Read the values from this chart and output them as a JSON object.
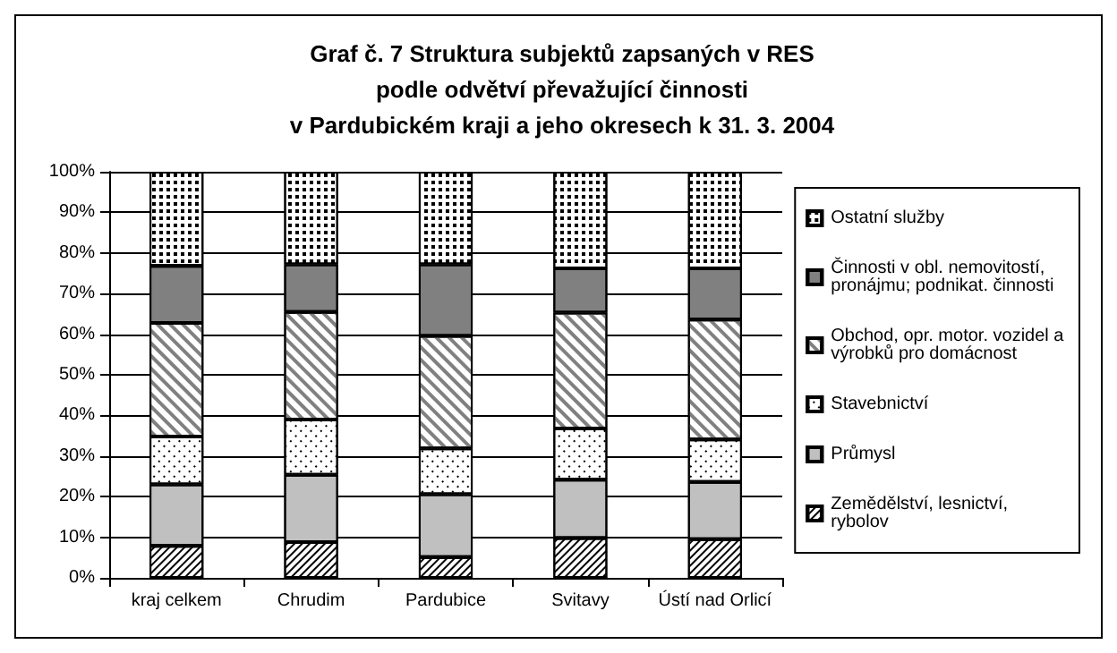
{
  "chart_data": {
    "type": "bar",
    "title": "Graf č. 7 Struktura subjektů zapsaných v RES\npodle odvětví převažující činnosti\nv Pardubickém kraji a jeho okresech k 31. 3. 2004",
    "categories": [
      "kraj celkem",
      "Chrudim",
      "Pardubice",
      "Svitavy",
      "Ústí nad Orlicí"
    ],
    "stacked": true,
    "ylim": [
      0,
      100
    ],
    "yticks": [
      {
        "value": 0,
        "label": "0%"
      },
      {
        "value": 10,
        "label": "10%"
      },
      {
        "value": 20,
        "label": "20%"
      },
      {
        "value": 30,
        "label": "30%"
      },
      {
        "value": 40,
        "label": "40%"
      },
      {
        "value": 50,
        "label": "50%"
      },
      {
        "value": 60,
        "label": "60%"
      },
      {
        "value": 70,
        "label": "70%"
      },
      {
        "value": 80,
        "label": "80%"
      },
      {
        "value": 90,
        "label": "90%"
      },
      {
        "value": 100,
        "label": "100%"
      }
    ],
    "grid": "y",
    "legend": "right",
    "series": [
      {
        "name": "Zemědělství, lesnictví, rybolov",
        "color": "#ffffff",
        "values": [
          7.9,
          8.8,
          5.1,
          9.8,
          9.5
        ]
      },
      {
        "name": "Průmysl",
        "color": "#c0c0c0",
        "values": [
          15.1,
          16.6,
          15.5,
          14.4,
          14.1
        ]
      },
      {
        "name": "Stavebnictví",
        "color": "#ffffff",
        "values": [
          11.8,
          13.6,
          11.3,
          12.6,
          10.5
        ]
      },
      {
        "name": "Obchod, opr. motor. vozidel a výrobků pro domácnost",
        "color": "#ffffff",
        "values": [
          28.0,
          26.5,
          27.7,
          28.5,
          29.5
        ]
      },
      {
        "name": "Činnosti v obl. nemovitostí, pronájmu; podnikat. činnosti",
        "color": "#808080",
        "values": [
          14.0,
          11.7,
          17.6,
          10.9,
          12.6
        ]
      },
      {
        "name": "Ostatní služby",
        "color": "#ffffff",
        "values": [
          23.2,
          22.8,
          22.8,
          23.8,
          23.8
        ]
      }
    ]
  }
}
